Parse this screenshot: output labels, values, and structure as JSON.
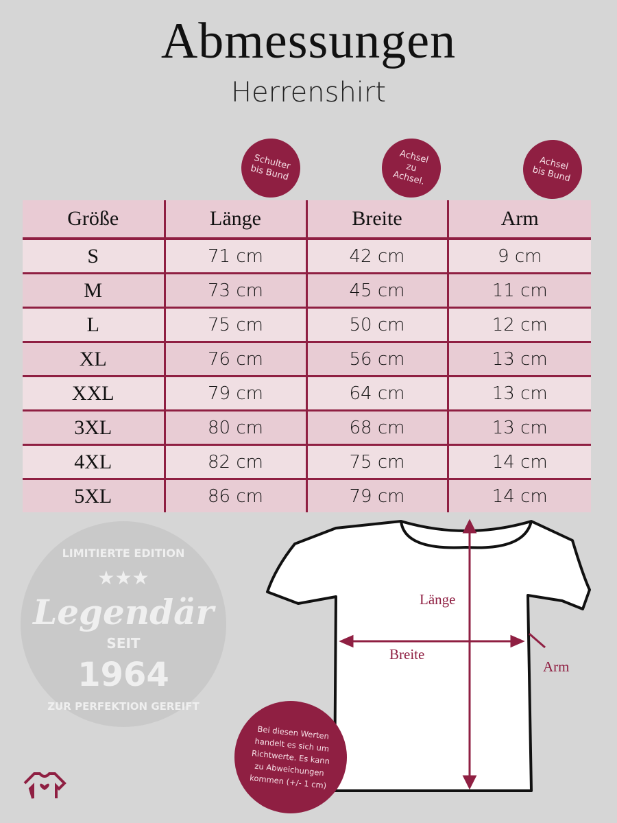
{
  "header": {
    "title": "Abmessungen",
    "subtitle": "Herrenshirt"
  },
  "badges": {
    "laenge": "Schulter\nbis Bund",
    "breite": "Achsel\nzu\nAchsel.",
    "arm": "Achsel\nbis Bund"
  },
  "table": {
    "columns": [
      "Größe",
      "Länge",
      "Breite",
      "Arm"
    ],
    "rows": [
      [
        "S",
        "71 cm",
        "42 cm",
        "9 cm"
      ],
      [
        "M",
        "73 cm",
        "45 cm",
        "11 cm"
      ],
      [
        "L",
        "75 cm",
        "50 cm",
        "12 cm"
      ],
      [
        "XL",
        "76 cm",
        "56 cm",
        "13 cm"
      ],
      [
        "XXL",
        "79 cm",
        "64 cm",
        "13 cm"
      ],
      [
        "3XL",
        "80 cm",
        "68 cm",
        "13 cm"
      ],
      [
        "4XL",
        "82 cm",
        "75 cm",
        "14 cm"
      ],
      [
        "5XL",
        "86 cm",
        "79 cm",
        "14 cm"
      ]
    ]
  },
  "diagram": {
    "laenge": "Länge",
    "breite": "Breite",
    "arm": "Arm"
  },
  "note": "Bei diesen Werten\nhandelt es sich um\nRichtwerte. Es kann\nzu Abweichungen\nkommen (+/- 1 cm)",
  "print_graphic": {
    "top": "LIMITIERTE EDITION",
    "script": "Legendär",
    "seit": "SEIT",
    "year": "1964",
    "bottom": "ZUR PERFEKTION GEREIFT"
  },
  "colors": {
    "accent": "#8f1f42",
    "background": "#d6d6d6",
    "row_light": "#f0dfe3",
    "row_dark": "#e8ccd4"
  }
}
